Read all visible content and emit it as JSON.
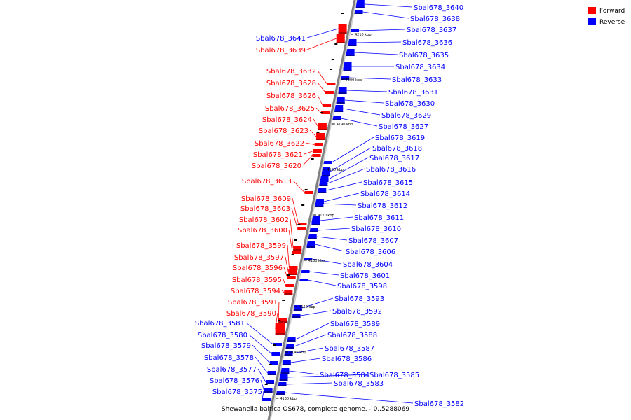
{
  "caption": "Shewanella baltica OS678, complete genome. - 0..5288069",
  "legend": [
    {
      "label": "Forward",
      "color": "#ff0000"
    },
    {
      "label": "Reverse",
      "color": "#0000ff"
    }
  ],
  "axis_ticks": [
    "4210 kbp",
    "4200 kbp",
    "4190 kbp",
    "4180 kbp",
    "4170 kbp",
    "4160 kbp",
    "4150 kbp",
    "4140 kbp",
    "4130 kbp"
  ],
  "forward_genes": [
    "Sbal678_3641",
    "Sbal678_3639",
    "Sbal678_3632",
    "Sbal678_3628",
    "Sbal678_3626",
    "Sbal678_3625",
    "Sbal678_3624",
    "Sbal678_3623",
    "Sbal678_3622",
    "Sbal678_3621",
    "Sbal678_3620",
    "Sbal678_3613",
    "Sbal678_3609",
    "Sbal678_3603",
    "Sbal678_3602",
    "Sbal678_3600",
    "Sbal678_3599",
    "Sbal678_3597",
    "Sbal678_3596",
    "Sbal678_3595",
    "Sbal678_3594",
    "Sbal678_3591",
    "Sbal678_3590"
  ],
  "reverse_genes_left": [
    "Sbal678_3581",
    "Sbal678_3580",
    "Sbal678_3579",
    "Sbal678_3578",
    "Sbal678_3577",
    "Sbal678_3576",
    "Sbal678_3575"
  ],
  "reverse_genes_right": [
    "Sbal678_3640",
    "Sbal678_3638",
    "Sbal678_3637",
    "Sbal678_3636",
    "Sbal678_3635",
    "Sbal678_3634",
    "Sbal678_3633",
    "Sbal678_3631",
    "Sbal678_3630",
    "Sbal678_3629",
    "Sbal678_3627",
    "Sbal678_3619",
    "Sbal678_3618",
    "Sbal678_3617",
    "Sbal678_3616",
    "Sbal678_3615",
    "Sbal678_3614",
    "Sbal678_3612",
    "Sbal678_3611",
    "Sbal678_3610",
    "Sbal678_3607",
    "Sbal678_3606",
    "Sbal678_3604",
    "Sbal678_3601",
    "Sbal678_3598",
    "Sbal678_3593",
    "Sbal678_3592",
    "Sbal678_3589",
    "Sbal678_3588",
    "Sbal678_3587",
    "Sbal678_3586",
    "Sbal678_3584",
    "Sbal678_3585",
    "Sbal678_3583",
    "Sbal678_3582"
  ]
}
